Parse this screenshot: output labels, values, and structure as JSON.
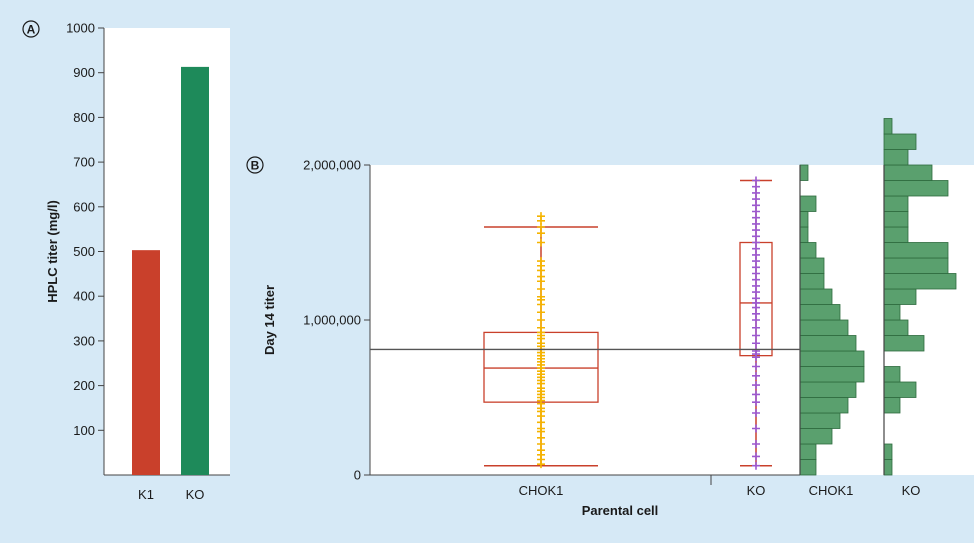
{
  "chart_data": [
    {
      "panel": "A",
      "type": "bar",
      "title": "",
      "ylabel": "HPLC titer (mg/l)",
      "xlabel": "",
      "categories": [
        "K1",
        "KO"
      ],
      "values": [
        503,
        913
      ],
      "colors": [
        "#c9402b",
        "#1e8a5a"
      ],
      "ylim": [
        0,
        1000
      ],
      "yticks": [
        "100",
        "200",
        "300",
        "400",
        "500",
        "600",
        "700",
        "800",
        "900",
        "1000"
      ],
      "grid": false
    },
    {
      "panel": "B",
      "type": "box",
      "title": "",
      "ylabel": "Day 14 titer",
      "xlabel": "Parental cell",
      "ylim": [
        0,
        2000000
      ],
      "yticks": [
        "0",
        "1,000,000",
        "2,000,000"
      ],
      "reference_line": 810000,
      "grid": false,
      "series": [
        {
          "name": "CHOK1",
          "whisker_low": 60000,
          "q1": 470000,
          "median": 690000,
          "q3": 920000,
          "whisker_high": 1600000,
          "point_color": "#f5b400",
          "box_color": "#c9402b",
          "points": [
            70000,
            100000,
            130000,
            160000,
            200000,
            240000,
            280000,
            300000,
            340000,
            380000,
            410000,
            430000,
            460000,
            480000,
            500000,
            520000,
            540000,
            560000,
            590000,
            610000,
            630000,
            650000,
            670000,
            690000,
            710000,
            730000,
            750000,
            770000,
            790000,
            810000,
            830000,
            850000,
            880000,
            900000,
            920000,
            950000,
            1000000,
            1050000,
            1100000,
            1130000,
            1150000,
            1200000,
            1250000,
            1280000,
            1320000,
            1350000,
            1380000,
            1500000,
            1560000,
            1600000,
            1640000,
            1670000
          ]
        },
        {
          "name": "KO",
          "whisker_low": 60000,
          "q1": 770000,
          "median": 1110000,
          "q3": 1500000,
          "whisker_high": 1900000,
          "point_color": "#9b59d0",
          "box_color": "#c9402b",
          "points": [
            60000,
            120000,
            200000,
            300000,
            400000,
            470000,
            520000,
            580000,
            640000,
            700000,
            760000,
            780000,
            800000,
            850000,
            900000,
            950000,
            1000000,
            1040000,
            1080000,
            1110000,
            1140000,
            1180000,
            1220000,
            1260000,
            1300000,
            1340000,
            1380000,
            1420000,
            1460000,
            1500000,
            1540000,
            1580000,
            1620000,
            1660000,
            1700000,
            1740000,
            1780000,
            1820000,
            1860000,
            1900000
          ]
        }
      ]
    },
    {
      "panel": "B",
      "type": "histogram",
      "title": "",
      "orientation": "horizontal",
      "bin_width": 100000,
      "ylim": [
        0,
        2000000
      ],
      "color": "#5aa06e",
      "series": [
        {
          "name": "CHOK1",
          "counts": [
            2,
            2,
            4,
            5,
            6,
            7,
            8,
            8,
            7,
            6,
            5,
            4,
            3,
            3,
            2,
            1,
            1,
            2,
            0,
            1
          ]
        },
        {
          "name": "KO",
          "counts": [
            1,
            1,
            0,
            0,
            2,
            4,
            2,
            0,
            5,
            3,
            2,
            4,
            9,
            8,
            8,
            3,
            3,
            3,
            8,
            6,
            3,
            4,
            1
          ]
        }
      ]
    }
  ],
  "panel_labels": [
    "A",
    "B"
  ]
}
